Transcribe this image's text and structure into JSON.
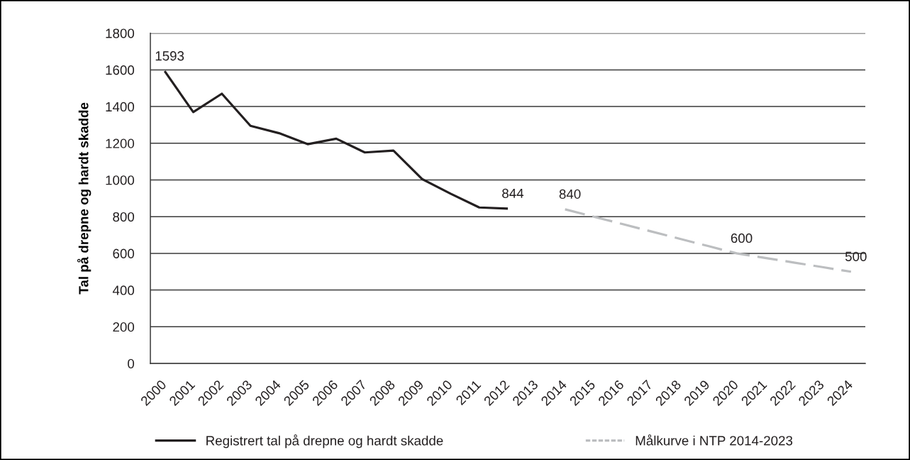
{
  "chart_data": {
    "type": "line",
    "ylabel": "Tal på drepne og hardt skadde",
    "categories": [
      "2000",
      "2001",
      "2002",
      "2003",
      "2004",
      "2005",
      "2006",
      "2007",
      "2008",
      "2009",
      "2010",
      "2011",
      "2012",
      "2013",
      "2014",
      "2015",
      "2016",
      "2017",
      "2018",
      "2019",
      "2020",
      "2021",
      "2022",
      "2023",
      "2024"
    ],
    "ylim": [
      0,
      1800
    ],
    "yticks": [
      0,
      200,
      400,
      600,
      800,
      1000,
      1200,
      1400,
      1600,
      1800
    ],
    "grid": "y",
    "legend": "bottom",
    "series": [
      {
        "name": "Registrert tal på drepne og hardt skadde",
        "color": "#231f20",
        "line_style": "solid",
        "values": [
          1593,
          1370,
          1470,
          1295,
          1255,
          1195,
          1225,
          1150,
          1160,
          1005,
          925,
          850,
          844,
          null,
          null,
          null,
          null,
          null,
          null,
          null,
          null,
          null,
          null,
          null,
          null
        ],
        "value_labels": [
          "1593",
          null,
          null,
          null,
          null,
          null,
          null,
          null,
          null,
          null,
          null,
          null,
          "844",
          null,
          null,
          null,
          null,
          null,
          null,
          null,
          null,
          null,
          null,
          null,
          null
        ]
      },
      {
        "name": "Målkurve i NTP 2014-2023",
        "color": "#bcbec0",
        "line_style": "dashed",
        "values": [
          null,
          null,
          null,
          null,
          null,
          null,
          null,
          null,
          null,
          null,
          null,
          null,
          null,
          null,
          840,
          800,
          760,
          720,
          680,
          640,
          600,
          575,
          550,
          525,
          500
        ],
        "value_labels": [
          null,
          null,
          null,
          null,
          null,
          null,
          null,
          null,
          null,
          null,
          null,
          null,
          null,
          null,
          "840",
          null,
          null,
          null,
          null,
          null,
          "600",
          null,
          null,
          null,
          "500"
        ]
      }
    ]
  }
}
